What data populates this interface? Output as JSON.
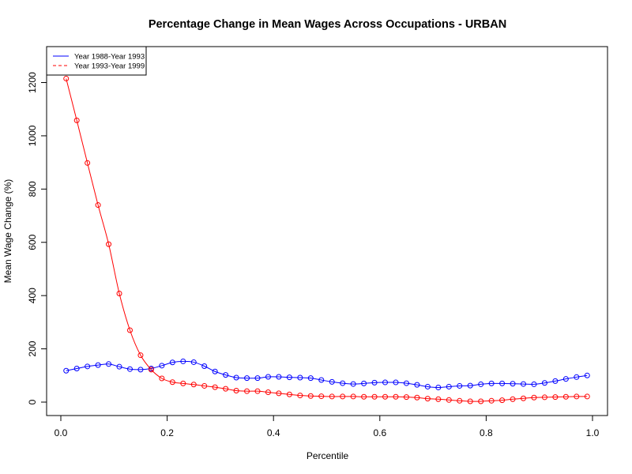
{
  "chart_data": {
    "type": "line",
    "title": "Percentage Change in Mean Wages  Across Occupations - URBAN",
    "xlabel": "Percentile",
    "ylabel": "Mean Wage Change (%)",
    "xlim": [
      0,
      1
    ],
    "ylim": [
      -50,
      1350
    ],
    "x_ticks": [
      0.0,
      0.2,
      0.4,
      0.6,
      0.8,
      1.0
    ],
    "x_tick_labels": [
      "0.0",
      "0.2",
      "0.4",
      "0.6",
      "0.8",
      "1.0"
    ],
    "y_ticks": [
      0,
      200,
      400,
      600,
      800,
      1000,
      1200
    ],
    "y_tick_labels": [
      "0",
      "200",
      "400",
      "600",
      "800",
      "1000",
      "1200"
    ],
    "grid": false,
    "legend_position": "top-left",
    "x": [
      0.01,
      0.03,
      0.05,
      0.07,
      0.09,
      0.11,
      0.13,
      0.15,
      0.17,
      0.19,
      0.21,
      0.23,
      0.25,
      0.27,
      0.29,
      0.31,
      0.33,
      0.35,
      0.37,
      0.39,
      0.41,
      0.43,
      0.45,
      0.47,
      0.49,
      0.51,
      0.53,
      0.55,
      0.57,
      0.59,
      0.61,
      0.63,
      0.65,
      0.67,
      0.69,
      0.71,
      0.73,
      0.75,
      0.77,
      0.79,
      0.81,
      0.83,
      0.85,
      0.87,
      0.89,
      0.91,
      0.93,
      0.95,
      0.97,
      0.99
    ],
    "series": [
      {
        "name": "Year 1988-Year 1993",
        "color": "#0000ff",
        "line_style": "solid",
        "values": [
          118,
          126,
          134,
          139,
          143,
          133,
          124,
          122,
          126,
          137,
          149,
          153,
          150,
          135,
          115,
          102,
          92,
          90,
          90,
          95,
          95,
          93,
          92,
          90,
          83,
          76,
          71,
          68,
          70,
          73,
          74,
          74,
          71,
          65,
          58,
          55,
          58,
          61,
          62,
          67,
          70,
          70,
          69,
          68,
          67,
          72,
          79,
          87,
          94,
          100
        ]
      },
      {
        "name": "Year 1993-Year 1999",
        "color": "#ff0000",
        "line_style": "dashed",
        "values": [
          1215,
          1058,
          898,
          740,
          593,
          408,
          270,
          176,
          122,
          89,
          75,
          70,
          66,
          61,
          56,
          50,
          43,
          41,
          41,
          37,
          33,
          29,
          25,
          23,
          22,
          21,
          21,
          21,
          20,
          20,
          20,
          20,
          19,
          17,
          13,
          11,
          8,
          5,
          3,
          3,
          5,
          7,
          11,
          14,
          17,
          18,
          19,
          20,
          21,
          21
        ]
      }
    ]
  }
}
